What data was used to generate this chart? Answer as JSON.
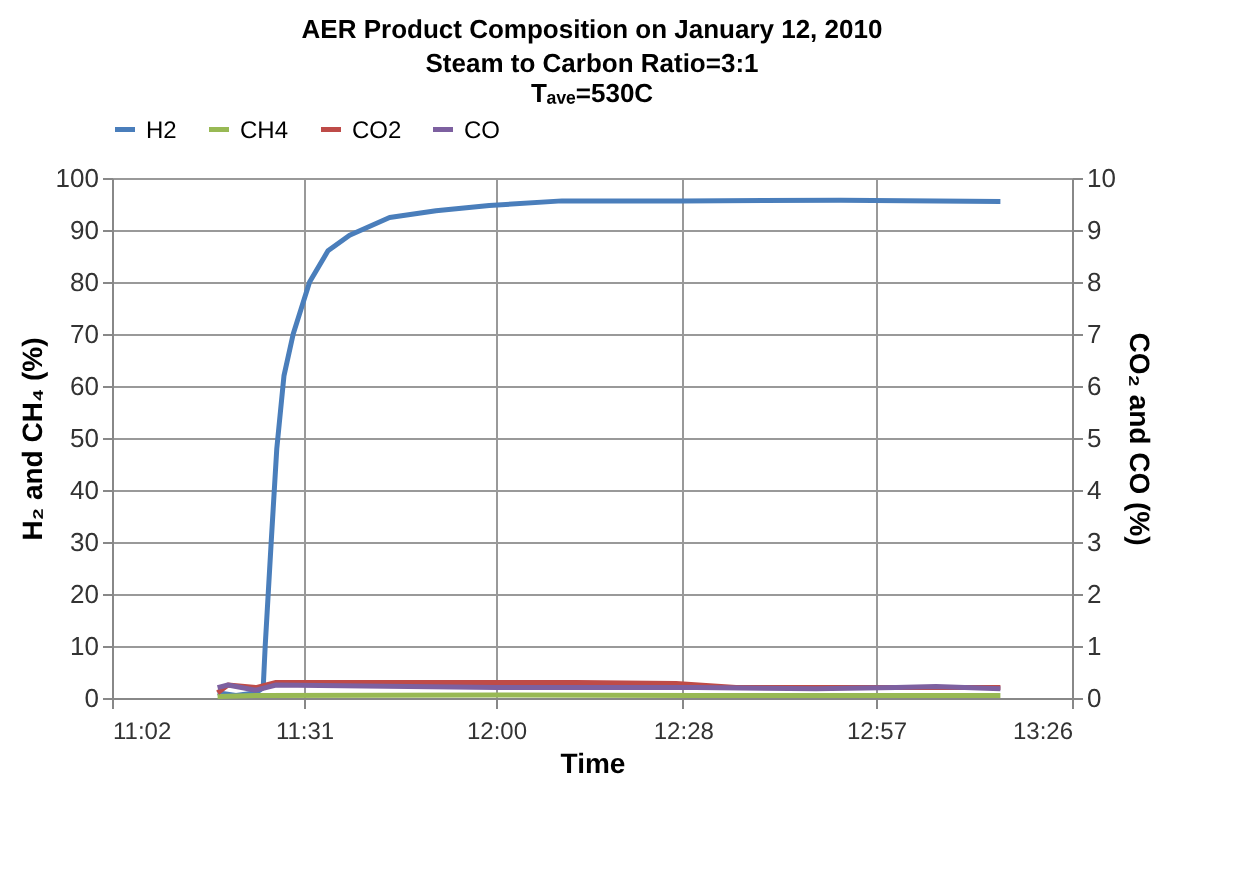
{
  "chart_data": {
    "type": "line",
    "title": "AER Product Composition  on January 12, 2010",
    "subtitle": "Steam to Carbon Ratio=3:1\nTₐᵥₑ=530C",
    "xlabel": "Time",
    "ylabel": "H₂ and CH₄ (%)",
    "y2label": "CO₂ and CO (%)",
    "xlim": [
      11.04,
      13.44
    ],
    "xticks": [
      {
        "value": 11.04,
        "label": "11:02"
      },
      {
        "value": 11.52,
        "label": "11:31"
      },
      {
        "value": 12.0,
        "label": "12:00"
      },
      {
        "value": 12.467,
        "label": "12:28"
      },
      {
        "value": 12.95,
        "label": "12:57"
      },
      {
        "value": 13.44,
        "label": "13:26"
      }
    ],
    "ylim": [
      0,
      100
    ],
    "yticks": [
      0,
      10,
      20,
      30,
      40,
      50,
      60,
      70,
      80,
      90,
      100
    ],
    "y2lim": [
      0,
      10
    ],
    "y2ticks": [
      0,
      1,
      2,
      3,
      4,
      5,
      6,
      7,
      8,
      9,
      10
    ],
    "grid": true,
    "legend": "top",
    "series": [
      {
        "name": "H2",
        "color": "#4a7ebb",
        "x": [
          11.304,
          11.35,
          11.4,
          11.418,
          11.423,
          11.438,
          11.452,
          11.47,
          11.493,
          11.534,
          11.58,
          11.634,
          11.734,
          11.85,
          11.983,
          12.165,
          12.464,
          12.862,
          13.261
        ],
        "values": [
          1,
          0.5,
          1,
          2,
          10,
          30,
          48,
          62,
          70,
          80,
          86,
          89,
          92.4,
          93.7,
          94.7,
          95.6,
          95.6,
          95.7,
          95.5
        ]
      },
      {
        "name": "CH4",
        "color": "#98b954",
        "x": [
          11.304,
          11.42,
          12.0,
          12.5,
          13.261
        ],
        "values": [
          0.3,
          0.5,
          0.6,
          0.5,
          0.5
        ]
      },
      {
        "name": "CO2",
        "color": "#be4b48",
        "axis": "y2",
        "x": [
          11.304,
          11.33,
          11.4,
          11.45,
          11.8,
          12.2,
          12.45,
          12.6,
          13.0,
          13.261
        ],
        "values": [
          0.1,
          0.25,
          0.2,
          0.3,
          0.3,
          0.3,
          0.28,
          0.2,
          0.2,
          0.2
        ]
      },
      {
        "name": "CO",
        "color": "#7d60a0",
        "axis": "y2",
        "x": [
          11.304,
          11.33,
          11.4,
          11.45,
          12.0,
          12.5,
          12.8,
          13.0,
          13.1,
          13.261
        ],
        "values": [
          0.2,
          0.25,
          0.15,
          0.25,
          0.2,
          0.2,
          0.18,
          0.2,
          0.22,
          0.18
        ]
      }
    ]
  }
}
